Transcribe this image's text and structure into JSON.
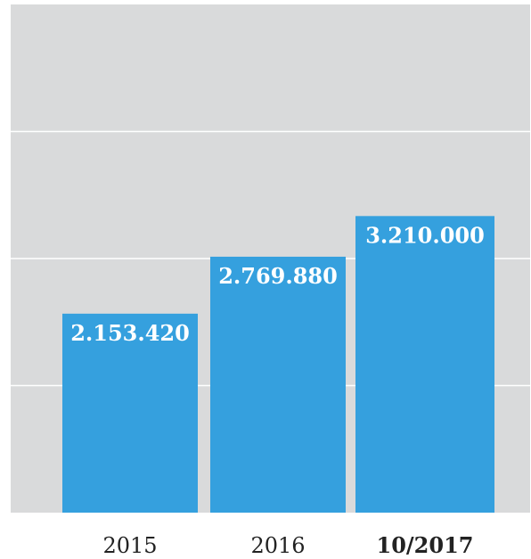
{
  "colors": {
    "plot_background": "#d9dadb",
    "bar": "#35a0de",
    "gridline": "#ffffff",
    "value_label": "#ffffff",
    "tick_label": "#222222"
  },
  "chart_data": {
    "type": "bar",
    "title": "",
    "xlabel": "",
    "ylabel": "",
    "categories": [
      "2015",
      "2016",
      "10/2017"
    ],
    "category_emphasis": [
      false,
      false,
      true
    ],
    "values": [
      2153420,
      2769880,
      3210000
    ],
    "value_labels": [
      "2.153.420",
      "2.769.880",
      "3.210.000"
    ],
    "ylim": [
      0,
      5500000
    ],
    "gridlines": [
      0,
      1375000,
      2750000,
      4125000
    ],
    "grid": true,
    "legend": "none"
  }
}
